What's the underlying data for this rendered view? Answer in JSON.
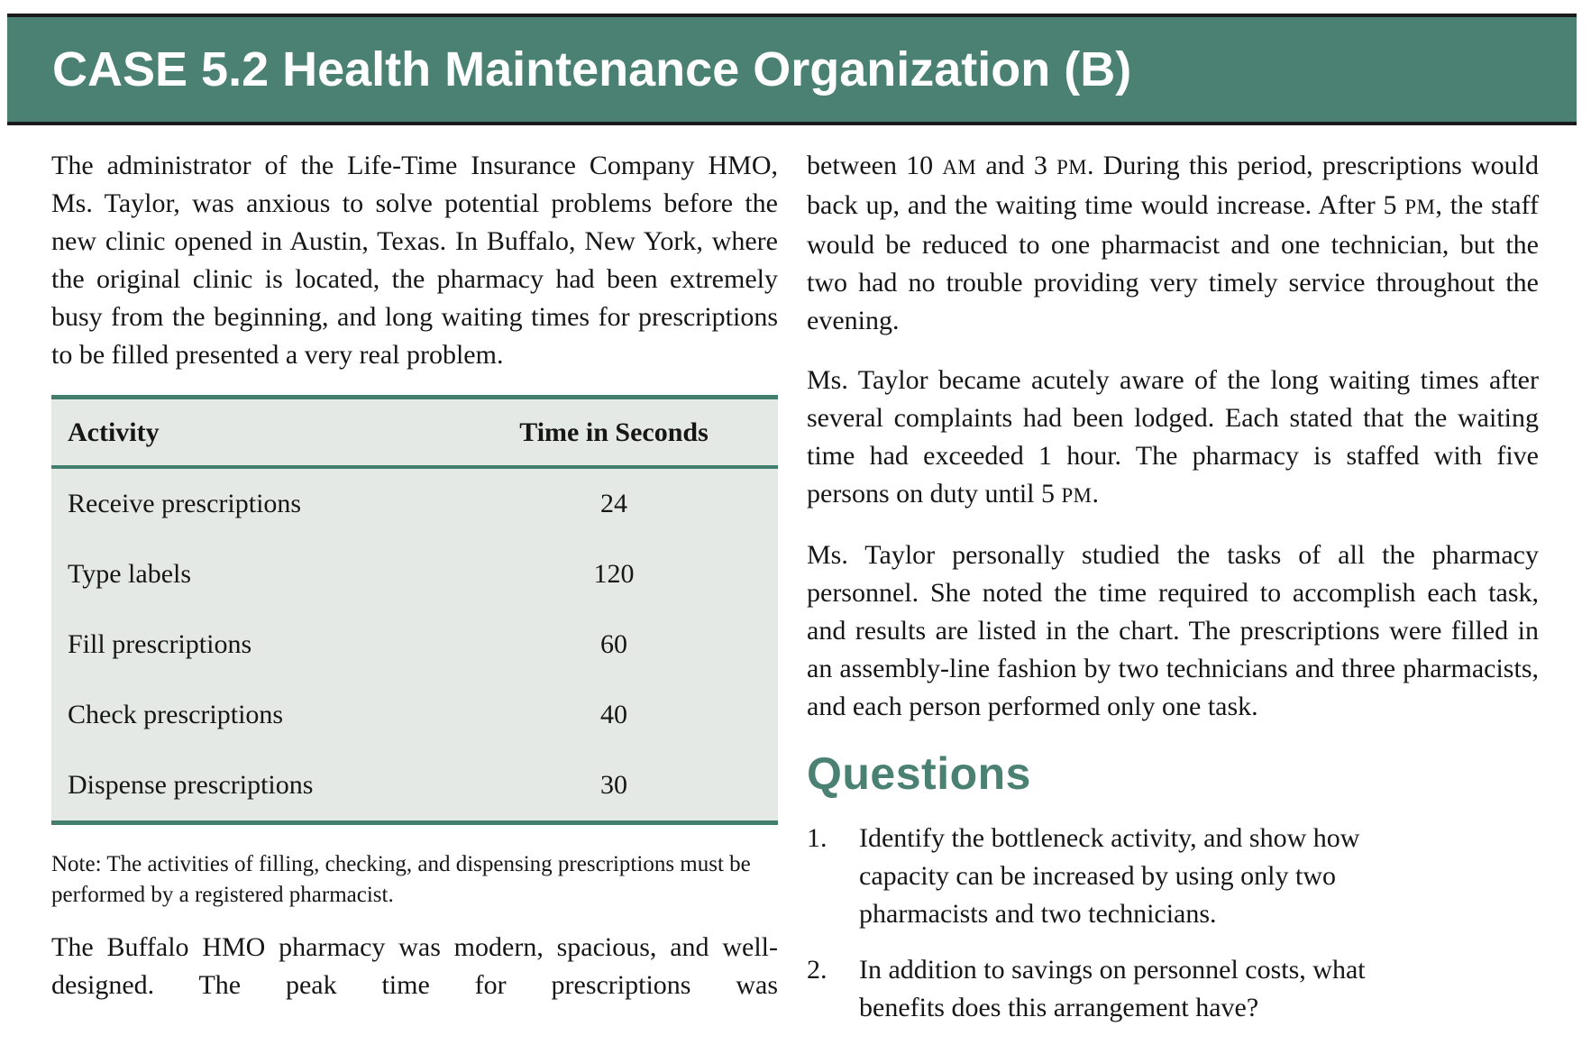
{
  "header": {
    "title": "CASE 5.2 Health Maintenance Organization (B)"
  },
  "colors": {
    "band_green": "#4A8173",
    "table_line_green": "#417E6E",
    "table_bg": "#E4E9E5",
    "accent_text_green": "#4A8173",
    "rule_black": "#1A1A1A",
    "body_text": "#161616"
  },
  "left_column": {
    "intro_paragraph": "The administrator of the Life-Time Insurance Company HMO, Ms. Taylor, was anxious to solve potential problems before the new clinic opened in Austin, Texas. In Buffalo, New York, where the original clinic is located, the pharmacy had been extremely busy from the beginning, and long waiting times for prescriptions to be filled presented a very real problem.",
    "table": {
      "headers": [
        "Activity",
        "Time in Seconds"
      ],
      "rows": [
        {
          "activity": "Receive prescriptions",
          "time": "24"
        },
        {
          "activity": "Type labels",
          "time": "120"
        },
        {
          "activity": "Fill prescriptions",
          "time": "60"
        },
        {
          "activity": "Check prescriptions",
          "time": "40"
        },
        {
          "activity": "Dispense prescriptions",
          "time": "30"
        }
      ]
    },
    "note": "Note: The activities of filling, checking, and dispensing prescriptions must be performed by a registered pharmacist.",
    "closing_paragraph": "The Buffalo HMO pharmacy was modern, spacious, and well-designed. The peak time for prescriptions was"
  },
  "right_column": {
    "paragraphs": [
      [
        {
          "t": "between 10 "
        },
        {
          "t": "AM",
          "sc": true
        },
        {
          "t": " and 3 "
        },
        {
          "t": "PM",
          "sc": true
        },
        {
          "t": ". During this period, prescriptions would back up, and the waiting time would increase. After 5 "
        },
        {
          "t": "PM",
          "sc": true
        },
        {
          "t": ", the staff would be reduced to one pharmacist and one technician, but the two had no trouble providing very timely service throughout the evening."
        }
      ],
      [
        {
          "t": "Ms. Taylor became acutely aware of the long waiting times after several complaints had been lodged. Each stated that the waiting time had exceeded 1 hour. The pharmacy is staffed with five persons on duty until 5 "
        },
        {
          "t": "PM",
          "sc": true
        },
        {
          "t": "."
        }
      ],
      [
        {
          "t": "Ms. Taylor personally studied the tasks of all the pharmacy personnel. She noted the time required to accomplish each task, and results are listed in the chart. The prescriptions were filled in an assembly-line fashion by two technicians and three pharmacists, and each person performed only one task."
        }
      ]
    ],
    "questions_heading": "Questions",
    "questions": [
      "Identify the bottleneck activity, and show how capacity can be increased by using only two pharmacists and two technicians.",
      "In addition to savings on personnel costs, what benefits does this arrangement have?"
    ]
  }
}
